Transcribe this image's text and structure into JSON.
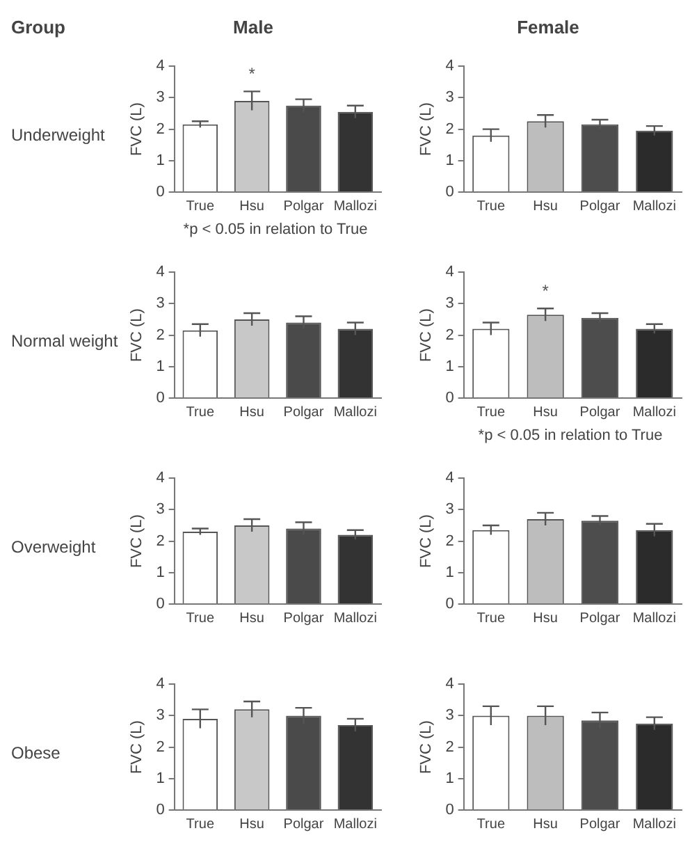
{
  "chart_data": [
    {
      "type": "bar",
      "title": "Male",
      "ylabel": "FVC (L)",
      "categories": [
        "True",
        "Hsu",
        "Polgar",
        "Mallozi"
      ],
      "values": [
        2.15,
        2.9,
        2.75,
        2.55
      ],
      "errors": [
        0.1,
        0.3,
        0.2,
        0.2
      ],
      "colors": [
        "#ffffff",
        "#c8c8c8",
        "#4a4a4a",
        "#333333"
      ],
      "ylim": [
        0,
        4
      ],
      "yticks": [
        0,
        1,
        2,
        3,
        4
      ],
      "grid": false,
      "legend": false,
      "annotations": [
        "Group",
        "Underweight",
        "*p < 0.05 in relation to True",
        "*"
      ]
    },
    {
      "type": "bar",
      "title": "Female",
      "ylabel": "FVC (L)",
      "categories": [
        "True",
        "Hsu",
        "Polgar",
        "Mallozi"
      ],
      "values": [
        1.8,
        2.25,
        2.15,
        1.95
      ],
      "errors": [
        0.2,
        0.2,
        0.15,
        0.15
      ],
      "colors": [
        "#ffffff",
        "#bdbdbd",
        "#4d4d4d",
        "#2b2b2b"
      ],
      "ylim": [
        0,
        4
      ],
      "yticks": [
        0,
        1,
        2,
        3,
        4
      ],
      "grid": false,
      "legend": false
    },
    {
      "type": "bar",
      "ylabel": "FVC (L)",
      "categories": [
        "True",
        "Hsu",
        "Polgar",
        "Mallozi"
      ],
      "values": [
        2.15,
        2.5,
        2.4,
        2.2
      ],
      "errors": [
        0.2,
        0.2,
        0.2,
        0.2
      ],
      "colors": [
        "#ffffff",
        "#c8c8c8",
        "#4a4a4a",
        "#333333"
      ],
      "ylim": [
        0,
        4
      ],
      "yticks": [
        0,
        1,
        2,
        3,
        4
      ],
      "grid": false,
      "legend": false,
      "annotations": [
        "Normal weight"
      ]
    },
    {
      "type": "bar",
      "ylabel": "FVC (L)",
      "categories": [
        "True",
        "Hsu",
        "Polgar",
        "Mallozi"
      ],
      "values": [
        2.2,
        2.65,
        2.55,
        2.2
      ],
      "errors": [
        0.2,
        0.2,
        0.15,
        0.15
      ],
      "colors": [
        "#ffffff",
        "#bdbdbd",
        "#4d4d4d",
        "#2b2b2b"
      ],
      "ylim": [
        0,
        4
      ],
      "yticks": [
        0,
        1,
        2,
        3,
        4
      ],
      "grid": false,
      "legend": false,
      "annotations": [
        "*p < 0.05 in relation to True",
        "*"
      ]
    },
    {
      "type": "bar",
      "ylabel": "FVC (L)",
      "categories": [
        "True",
        "Hsu",
        "Polgar",
        "Mallozi"
      ],
      "values": [
        2.3,
        2.5,
        2.4,
        2.2
      ],
      "errors": [
        0.1,
        0.2,
        0.2,
        0.15
      ],
      "colors": [
        "#ffffff",
        "#c8c8c8",
        "#4a4a4a",
        "#333333"
      ],
      "ylim": [
        0,
        4
      ],
      "yticks": [
        0,
        1,
        2,
        3,
        4
      ],
      "grid": false,
      "legend": false,
      "annotations": [
        "Overweight"
      ]
    },
    {
      "type": "bar",
      "ylabel": "FVC (L)",
      "categories": [
        "True",
        "Hsu",
        "Polgar",
        "Mallozi"
      ],
      "values": [
        2.35,
        2.7,
        2.65,
        2.35
      ],
      "errors": [
        0.15,
        0.2,
        0.15,
        0.2
      ],
      "colors": [
        "#ffffff",
        "#bdbdbd",
        "#4d4d4d",
        "#2b2b2b"
      ],
      "ylim": [
        0,
        4
      ],
      "yticks": [
        0,
        1,
        2,
        3,
        4
      ],
      "grid": false,
      "legend": false
    },
    {
      "type": "bar",
      "ylabel": "FVC (L)",
      "categories": [
        "True",
        "Hsu",
        "Polgar",
        "Mallozi"
      ],
      "values": [
        2.9,
        3.2,
        3.0,
        2.7
      ],
      "errors": [
        0.3,
        0.25,
        0.25,
        0.2
      ],
      "colors": [
        "#ffffff",
        "#c8c8c8",
        "#4a4a4a",
        "#333333"
      ],
      "ylim": [
        0,
        4
      ],
      "yticks": [
        0,
        1,
        2,
        3,
        4
      ],
      "grid": false,
      "legend": false,
      "annotations": [
        "Obese"
      ]
    },
    {
      "type": "bar",
      "ylabel": "FVC (L)",
      "categories": [
        "True",
        "Hsu",
        "Polgar",
        "Mallozi"
      ],
      "values": [
        3.0,
        3.0,
        2.85,
        2.75
      ],
      "errors": [
        0.3,
        0.3,
        0.25,
        0.2
      ],
      "colors": [
        "#ffffff",
        "#bdbdbd",
        "#4d4d4d",
        "#2b2b2b"
      ],
      "ylim": [
        0,
        4
      ],
      "yticks": [
        0,
        1,
        2,
        3,
        4
      ],
      "grid": false,
      "legend": false
    }
  ]
}
